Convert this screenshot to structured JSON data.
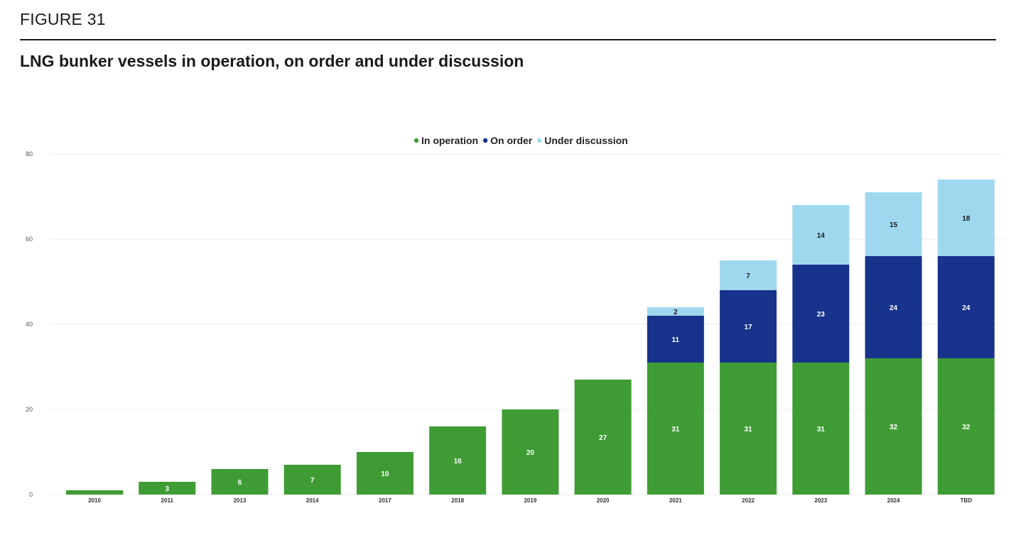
{
  "figure_label": "FIGURE 31",
  "chart_title": "LNG bunker vessels in operation, on order and under discussion",
  "chart_data": {
    "type": "bar",
    "stacked": true,
    "categories": [
      "2010",
      "2011",
      "2013",
      "2014",
      "2017",
      "2018",
      "2019",
      "2020",
      "2021",
      "2022",
      "2023",
      "2024",
      "TBD"
    ],
    "series": [
      {
        "name": "In operation",
        "color": "#3f9c35",
        "values": [
          1,
          3,
          6,
          7,
          10,
          16,
          20,
          27,
          31,
          31,
          31,
          32,
          32
        ],
        "labels": [
          "",
          "3",
          "6",
          "7",
          "10",
          "16",
          "20",
          "27",
          "31",
          "31",
          "31",
          "32",
          "32"
        ]
      },
      {
        "name": "On order",
        "color": "#17338c",
        "values": [
          0,
          0,
          0,
          0,
          0,
          0,
          0,
          0,
          11,
          17,
          23,
          24,
          24
        ],
        "labels": [
          "",
          "",
          "",
          "",
          "",
          "",
          "",
          "",
          "11",
          "17",
          "23",
          "24",
          "24"
        ]
      },
      {
        "name": "Under discussion",
        "color": "#9fd8ee",
        "values": [
          0,
          0,
          0,
          0,
          0,
          0,
          0,
          0,
          2,
          7,
          14,
          15,
          18
        ],
        "labels": [
          "",
          "",
          "",
          "",
          "",
          "",
          "",
          "",
          "2",
          "7",
          "14",
          "15",
          "18"
        ]
      }
    ],
    "yticks": [
      0,
      20,
      40,
      60,
      80
    ],
    "ylim": [
      0,
      80
    ],
    "grid": true,
    "legend": "top-center"
  }
}
